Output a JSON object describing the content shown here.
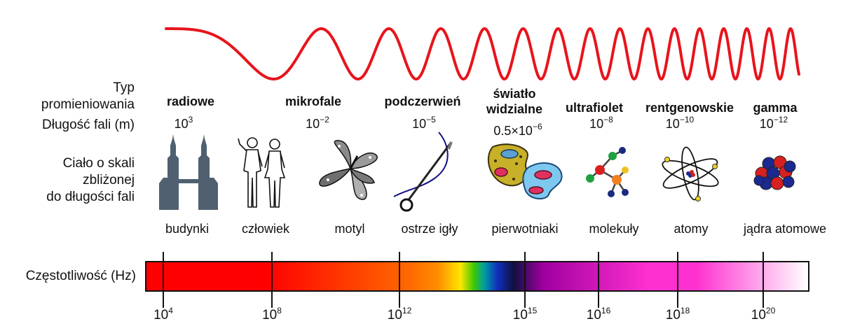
{
  "row_labels": {
    "type_line1": "Typ",
    "type_line2": "promieniowania",
    "wavelength": "Długość fali (m)",
    "body_line1": "Ciało o skali",
    "body_line2": "zbliżonej",
    "body_line3": "do długości fali",
    "frequency": "Częstotliwość (Hz)"
  },
  "radiation_types": [
    {
      "name": "radiowe",
      "wl_base": "10",
      "wl_exp": "3",
      "object": "budynki",
      "icon": "towers-icon"
    },
    {
      "name": "mikrofale",
      "wl_base": "10",
      "wl_exp": "−2",
      "object": "człowiek",
      "icon": "human-icon"
    },
    {
      "name": "podczerwień",
      "wl_base": "10",
      "wl_exp": "−5",
      "object": "ostrze igły",
      "icon": "needle-icon"
    },
    {
      "name_line1": "światło",
      "name_line2": "widzialne",
      "wl_base": "0.5×10",
      "wl_exp": "−6",
      "object": "pierwotniaki",
      "icon": "protozoa-icon"
    },
    {
      "name": "ultrafiolet",
      "wl_base": "10",
      "wl_exp": "−8",
      "object": "molekuły",
      "icon": "molecule-icon"
    },
    {
      "name": "rentgenowskie",
      "wl_base": "10",
      "wl_exp": "−10",
      "object": "atomy",
      "icon": "atom-icon"
    },
    {
      "name": "gamma",
      "wl_base": "10",
      "wl_exp": "−12",
      "object": "jądra atomowe",
      "icon": "nucleus-icon"
    }
  ],
  "frequency_ticks": [
    {
      "base": "10",
      "exp": "4"
    },
    {
      "base": "10",
      "exp": "8"
    },
    {
      "base": "10",
      "exp": "12"
    },
    {
      "base": "10",
      "exp": "15"
    },
    {
      "base": "10",
      "exp": "16"
    },
    {
      "base": "10",
      "exp": "18"
    },
    {
      "base": "10",
      "exp": "20"
    }
  ],
  "colors": {
    "wave": "#e8141c",
    "radio": "#ff0000",
    "infrared": "#ff6a00",
    "visible": [
      "#ff8c00",
      "#ffe600",
      "#3cc800",
      "#00a0a0",
      "#1030c0",
      "#101040"
    ],
    "uv": "#a000a0",
    "xray": "#ff30d0",
    "gamma": "#ffffff"
  }
}
